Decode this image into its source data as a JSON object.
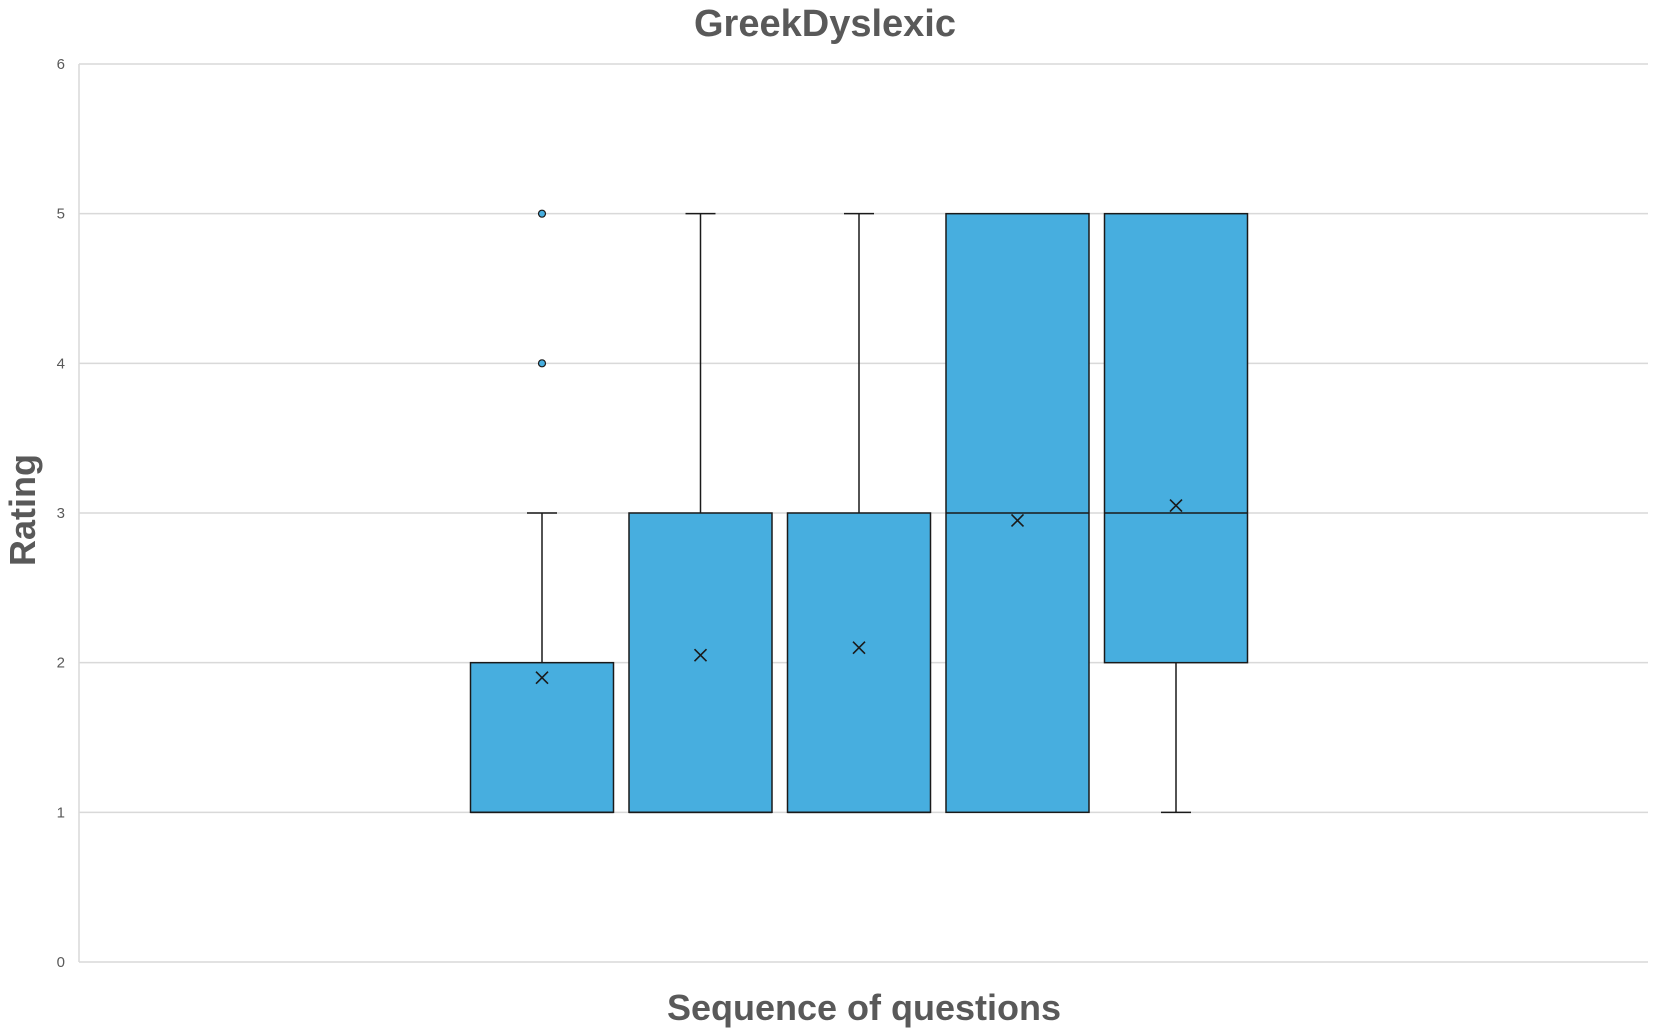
{
  "chart_data": {
    "type": "box",
    "title": "GreekDyslexic",
    "xlabel": "Sequence of questions",
    "ylabel": "Rating",
    "ylim": [
      0,
      6
    ],
    "yticks": [
      0,
      1,
      2,
      3,
      4,
      5,
      6
    ],
    "grid": true,
    "fill_color": "#47AEDF",
    "stroke_color": "#1a1a1a",
    "gridline_color": "#d9d9d9",
    "text_color": "#595959",
    "series": [
      {
        "min": 1,
        "q1": 1,
        "median": 1,
        "q3": 2,
        "max": 3,
        "mean": 1.9,
        "outliers": [
          4,
          5
        ]
      },
      {
        "min": 1,
        "q1": 1,
        "median": 1,
        "q3": 3,
        "max": 5,
        "mean": 2.05,
        "outliers": []
      },
      {
        "min": 1,
        "q1": 1,
        "median": 1,
        "q3": 3,
        "max": 5,
        "mean": 2.1,
        "outliers": []
      },
      {
        "min": 1,
        "q1": 1,
        "median": 3,
        "q3": 5,
        "max": 5,
        "mean": 2.95,
        "outliers": []
      },
      {
        "min": 1,
        "q1": 2,
        "median": 3,
        "q3": 5,
        "max": 5,
        "mean": 3.05,
        "outliers": []
      }
    ]
  }
}
